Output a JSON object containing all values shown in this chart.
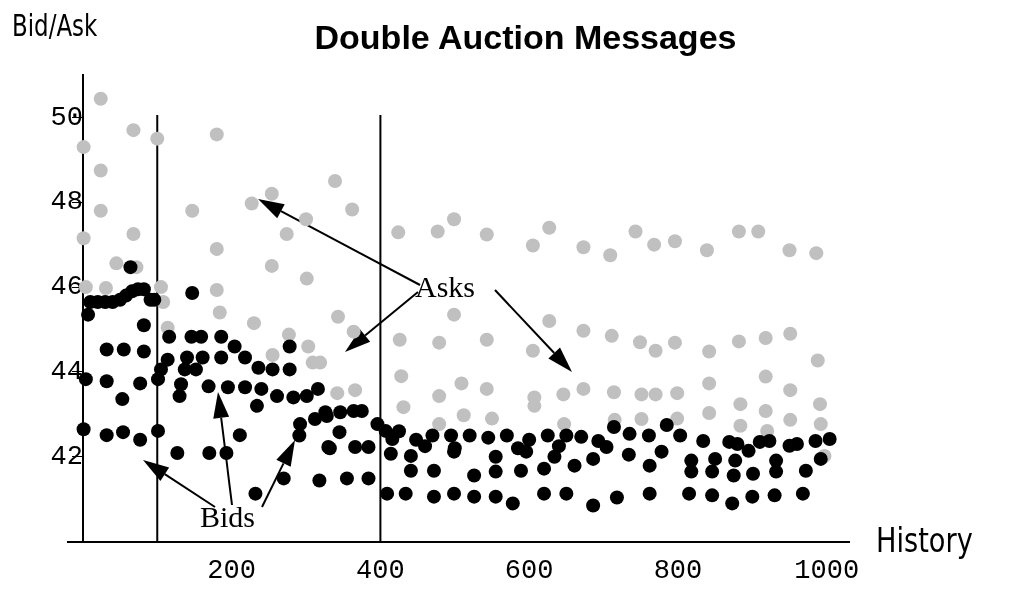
{
  "chart_data": {
    "type": "scatter",
    "title": "Double Auction Messages",
    "xlabel": "History",
    "ylabel": "Bid/Ask",
    "marker": "circle",
    "grid": false,
    "legend": false,
    "xlim": [
      -20,
      1030
    ],
    "xticks": [
      200,
      400,
      600,
      800,
      1000
    ],
    "ylim": [
      40,
      51
    ],
    "yticks": [
      42,
      44,
      46,
      48,
      50
    ],
    "annotations": [
      "Asks",
      "Bids"
    ],
    "ref_lines": [
      {
        "axis": "x",
        "value": 100,
        "color": "#000000"
      },
      {
        "axis": "x",
        "value": 400,
        "color": "#000000"
      }
    ],
    "series": [
      {
        "color": "#c0c0c0",
        "x": [
          1,
          1,
          4,
          24,
          24,
          24,
          31,
          45,
          68,
          68,
          72,
          100,
          105,
          108,
          114,
          147,
          180,
          180,
          180,
          184,
          227,
          230,
          254,
          254,
          255,
          274,
          277,
          300,
          301,
          303,
          309,
          319,
          339,
          342,
          343,
          362,
          364,
          366,
          424,
          426,
          428,
          431,
          477,
          479,
          479,
          479,
          499,
          499,
          509,
          512,
          543,
          543,
          543,
          550,
          605,
          605,
          607,
          607,
          627,
          627,
          646,
          647,
          673,
          673,
          673,
          709,
          711,
          714,
          715,
          743,
          749,
          751,
          751,
          768,
          770,
          770,
          796,
          796,
          799,
          799,
          839,
          842,
          842,
          842,
          882,
          882,
          884,
          884,
          908,
          918,
          918,
          918,
          920,
          950,
          951,
          951,
          951,
          986,
          988,
          991,
          992,
          997
        ],
        "values": [
          49.3,
          47.15,
          46.0,
          50.44,
          48.75,
          47.8,
          45.98,
          46.56,
          49.7,
          47.25,
          46.47,
          49.5,
          46.0,
          45.65,
          45.04,
          47.8,
          49.6,
          46.9,
          45.93,
          45.4,
          47.97,
          45.15,
          48.2,
          46.5,
          44.4,
          47.25,
          44.88,
          47.6,
          46.2,
          44.6,
          44.22,
          44.22,
          48.5,
          43.5,
          45.3,
          47.83,
          44.95,
          43.57,
          47.29,
          44.76,
          43.9,
          43.17,
          47.31,
          44.69,
          43.43,
          42.77,
          47.6,
          45.35,
          43.73,
          42.98,
          47.24,
          44.76,
          43.6,
          42.9,
          46.98,
          44.5,
          43.4,
          43.2,
          47.4,
          45.2,
          43.47,
          42.77,
          46.94,
          44.97,
          43.6,
          46.75,
          44.85,
          43.52,
          42.87,
          47.31,
          44.7,
          43.47,
          42.89,
          47.0,
          44.5,
          43.47,
          47.08,
          44.69,
          43.5,
          42.9,
          46.87,
          44.48,
          43.73,
          43.03,
          47.31,
          44.72,
          43.24,
          42.73,
          47.31,
          44.8,
          43.89,
          43.08,
          42.61,
          46.87,
          44.9,
          43.57,
          42.87,
          46.8,
          44.27,
          43.24,
          42.77,
          42.02
        ]
      },
      {
        "color": "#000000",
        "x": [
          1,
          4,
          7,
          10,
          20,
          30,
          40,
          50,
          58,
          66,
          74,
          82,
          91,
          96,
          32,
          55,
          82,
          82,
          32,
          53,
          77,
          32,
          54,
          77,
          101,
          101,
          64,
          147,
          105,
          114,
          116,
          137,
          140,
          146,
          152,
          159,
          161,
          186,
          186,
          204,
          218,
          236,
          255,
          278,
          278,
          132,
          130,
          169,
          195,
          218,
          240,
          261,
          283,
          301,
          316,
          234,
          211,
          127,
          170,
          193,
          232,
          270,
          291,
          292,
          312,
          326,
          318,
          330,
          328,
          346,
          364,
          375,
          345,
          332,
          366,
          384,
          355,
          384,
          396,
          407,
          416,
          414,
          409,
          434,
          441,
          441,
          472,
          472,
          499,
          499,
          526,
          526,
          555,
          555,
          555,
          578,
          589,
          620,
          620,
          650,
          661,
          634,
          596,
          425,
          448,
          470,
          495,
          520,
          545,
          570,
          600,
          625,
          650,
          460,
          500,
          585,
          640,
          670,
          686,
          686,
          718,
          704,
          714,
          734,
          762,
          762,
          778,
          785,
          803,
          815,
          818,
          818,
          834,
          846,
          846,
          850,
          873,
          875,
          877,
          869,
          900,
          901,
          895,
          930,
          932,
          932,
          923,
          968,
          972,
          950,
          985,
          1004,
          992,
          735,
          761,
          693,
          880,
          910,
          960
        ],
        "values": [
          42.65,
          43.83,
          45.35,
          45.65,
          45.65,
          45.65,
          45.65,
          45.7,
          45.8,
          45.9,
          45.95,
          45.95,
          45.7,
          45.7,
          44.53,
          44.53,
          44.48,
          45.1,
          43.78,
          43.36,
          43.73,
          42.51,
          42.58,
          42.4,
          42.61,
          43.83,
          46.47,
          45.86,
          44.06,
          44.29,
          44.83,
          44.06,
          44.34,
          44.83,
          44.06,
          44.83,
          44.34,
          44.83,
          44.34,
          44.6,
          44.34,
          44.1,
          44.06,
          44.06,
          44.6,
          43.71,
          43.43,
          43.66,
          43.64,
          43.64,
          43.6,
          43.43,
          43.4,
          43.43,
          43.6,
          43.2,
          42.51,
          42.09,
          42.09,
          42.09,
          41.13,
          41.49,
          42.5,
          42.77,
          42.89,
          43.05,
          41.44,
          42.23,
          42.96,
          43.05,
          43.08,
          43.08,
          42.58,
          42.2,
          42.23,
          42.23,
          41.49,
          41.49,
          42.77,
          42.61,
          42.42,
          42.07,
          41.13,
          41.13,
          42.02,
          41.67,
          41.67,
          41.06,
          41.13,
          42.12,
          41.56,
          41.06,
          41.65,
          42.0,
          41.06,
          40.9,
          41.67,
          41.72,
          41.13,
          41.13,
          41.79,
          42.0,
          42.12,
          42.6,
          42.4,
          42.5,
          42.5,
          42.5,
          42.45,
          42.5,
          42.4,
          42.5,
          42.5,
          42.25,
          42.2,
          42.2,
          42.25,
          42.47,
          41.95,
          40.85,
          41.04,
          42.23,
          42.7,
          42.05,
          41.79,
          41.13,
          42.12,
          42.75,
          42.5,
          41.13,
          41.65,
          41.91,
          42.37,
          41.09,
          41.65,
          41.95,
          40.9,
          41.56,
          41.91,
          42.35,
          41.06,
          41.6,
          42.14,
          41.09,
          41.65,
          41.91,
          42.37,
          41.13,
          41.67,
          42.26,
          42.37,
          42.42,
          41.95,
          42.54,
          42.5,
          42.37,
          42.3,
          42.35,
          42.3
        ]
      }
    ]
  }
}
